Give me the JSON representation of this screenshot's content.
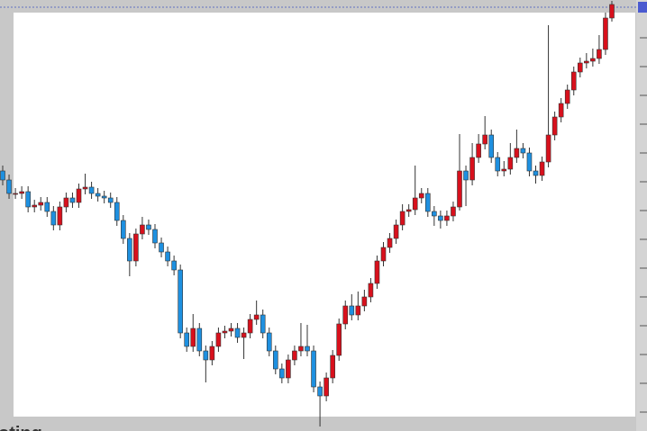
{
  "chart_data": {
    "type": "candlestick",
    "open": [
      289,
      279,
      264,
      264,
      266,
      249,
      251,
      254,
      244,
      229,
      249,
      259,
      254,
      269,
      271,
      264,
      261,
      259,
      254,
      234,
      214,
      189,
      219,
      229,
      224,
      209,
      199,
      189,
      179,
      109,
      94,
      114,
      89,
      79,
      94,
      109,
      111,
      114,
      104,
      109,
      124,
      129,
      109,
      89,
      69,
      59,
      79,
      89,
      94,
      89,
      49,
      39,
      59,
      84,
      119,
      139,
      129,
      139,
      149,
      164,
      189,
      204,
      214,
      229,
      244,
      246,
      259,
      264,
      244,
      239,
      234,
      239,
      249,
      289,
      279,
      304,
      319,
      329,
      304,
      289,
      291,
      304,
      314,
      309,
      289,
      284,
      299,
      329,
      349,
      364,
      379,
      399,
      409,
      411,
      414,
      424,
      459
    ],
    "high": [
      295,
      285,
      270,
      272,
      272,
      257,
      260,
      260,
      250,
      255,
      265,
      265,
      275,
      286,
      277,
      270,
      267,
      265,
      260,
      240,
      220,
      225,
      238,
      235,
      230,
      215,
      205,
      195,
      185,
      115,
      130,
      120,
      95,
      100,
      115,
      117,
      120,
      120,
      115,
      130,
      145,
      135,
      115,
      95,
      75,
      85,
      95,
      120,
      118,
      95,
      55,
      65,
      90,
      125,
      145,
      152,
      155,
      157,
      170,
      195,
      210,
      220,
      235,
      252,
      252,
      295,
      270,
      270,
      250,
      245,
      245,
      255,
      330,
      295,
      320,
      330,
      350,
      335,
      310,
      300,
      320,
      335,
      320,
      315,
      295,
      305,
      451,
      355,
      370,
      385,
      405,
      415,
      420,
      425,
      440,
      465,
      478
    ],
    "low": [
      273,
      258,
      258,
      258,
      243,
      243,
      245,
      238,
      223,
      223,
      243,
      248,
      248,
      263,
      258,
      255,
      253,
      248,
      228,
      208,
      172,
      183,
      213,
      218,
      203,
      193,
      183,
      173,
      103,
      88,
      88,
      83,
      54,
      73,
      88,
      103,
      105,
      98,
      80,
      103,
      118,
      103,
      83,
      63,
      53,
      53,
      73,
      83,
      83,
      43,
      5,
      33,
      53,
      78,
      113,
      123,
      123,
      133,
      143,
      158,
      183,
      198,
      208,
      223,
      238,
      240,
      253,
      238,
      228,
      225,
      228,
      233,
      245,
      250,
      273,
      298,
      313,
      298,
      283,
      283,
      285,
      298,
      303,
      283,
      275,
      278,
      293,
      323,
      343,
      358,
      373,
      393,
      403,
      405,
      408,
      418,
      455
    ],
    "close": [
      279,
      264,
      264,
      266,
      249,
      251,
      254,
      244,
      229,
      249,
      259,
      254,
      269,
      271,
      264,
      261,
      259,
      254,
      234,
      214,
      189,
      219,
      229,
      224,
      209,
      199,
      189,
      179,
      109,
      94,
      114,
      89,
      79,
      94,
      109,
      111,
      114,
      104,
      109,
      124,
      129,
      109,
      89,
      69,
      59,
      79,
      89,
      94,
      89,
      49,
      39,
      59,
      84,
      119,
      139,
      129,
      139,
      149,
      164,
      189,
      204,
      214,
      229,
      244,
      246,
      259,
      264,
      244,
      239,
      234,
      239,
      249,
      289,
      279,
      304,
      319,
      329,
      304,
      289,
      291,
      304,
      314,
      309,
      289,
      284,
      299,
      329,
      349,
      364,
      379,
      399,
      409,
      411,
      414,
      424,
      459,
      474
    ],
    "up_color": "#d8101c",
    "down_color": "#1e90e0",
    "ylim": [
      0,
      479
    ]
  },
  "watermark": "oting"
}
